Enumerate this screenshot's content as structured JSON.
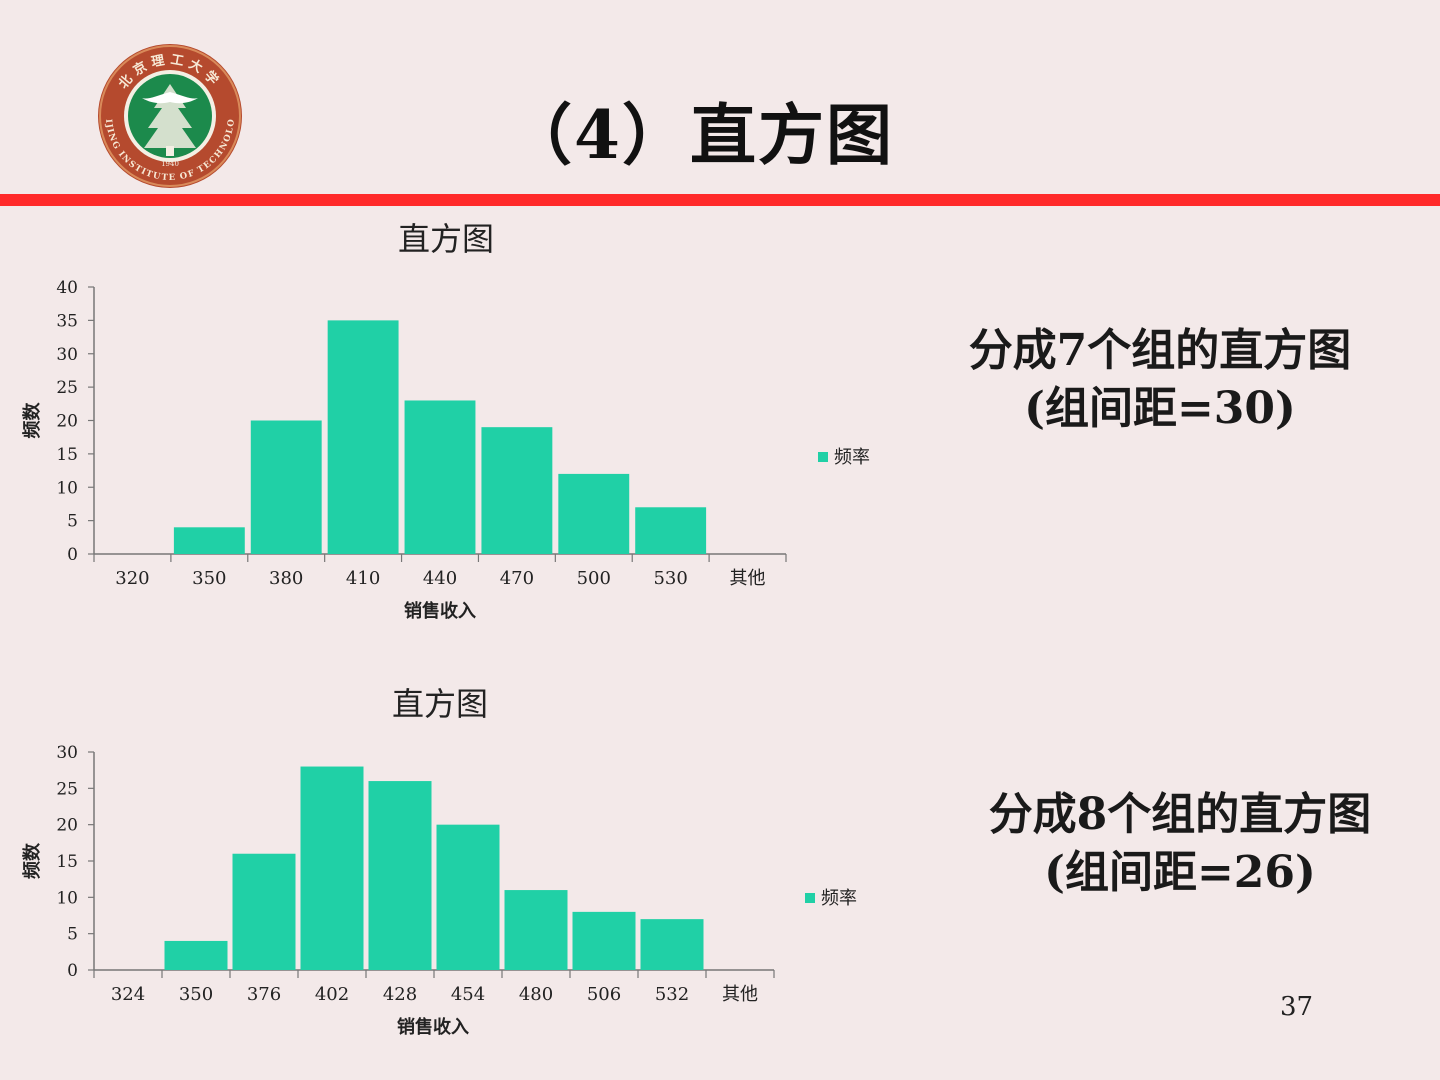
{
  "slide": {
    "title": "（4）直方图",
    "page_number": "37"
  },
  "logo": {
    "arc_top": "北京理工大学",
    "arc_bottom": "BEIJING INSTITUTE OF TECHNOLOGY",
    "year": "1940"
  },
  "captions": [
    {
      "line1": "分成7个组的直方图",
      "line2": "(组间距=30)"
    },
    {
      "line1": "分成8个组的直方图",
      "line2": "(组间距=26)"
    }
  ],
  "colors": {
    "bar": "#20d0a6",
    "rule": "#ff2a2a",
    "background": "#f3e9e9"
  },
  "chart_data": [
    {
      "type": "bar",
      "title": "直方图",
      "xlabel": "销售收入",
      "ylabel": "频数",
      "categories": [
        "320",
        "350",
        "380",
        "410",
        "440",
        "470",
        "500",
        "530",
        "其他"
      ],
      "series": [
        {
          "name": "频率",
          "values": [
            0,
            4,
            20,
            35,
            23,
            19,
            12,
            7,
            0
          ]
        }
      ],
      "ylim": [
        0,
        40
      ],
      "yticks": [
        0,
        5,
        10,
        15,
        20,
        25,
        30,
        35,
        40
      ],
      "legend": "right",
      "grid": false
    },
    {
      "type": "bar",
      "title": "直方图",
      "xlabel": "销售收入",
      "ylabel": "频数",
      "categories": [
        "324",
        "350",
        "376",
        "402",
        "428",
        "454",
        "480",
        "506",
        "532",
        "其他"
      ],
      "series": [
        {
          "name": "频率",
          "values": [
            0,
            4,
            16,
            28,
            26,
            20,
            11,
            8,
            7,
            0
          ]
        }
      ],
      "ylim": [
        0,
        30
      ],
      "yticks": [
        0,
        5,
        10,
        15,
        20,
        25,
        30
      ],
      "legend": "right",
      "grid": false
    }
  ]
}
